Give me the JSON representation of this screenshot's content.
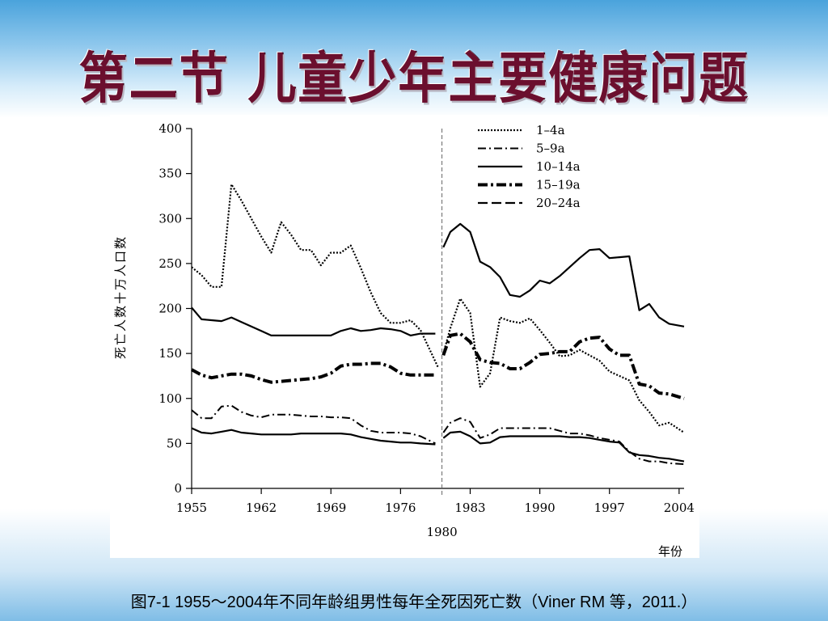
{
  "slide": {
    "title": "第二节  儿童少年主要健康问题",
    "caption": "图7-1  1955～2004年不同年龄组男性每年全死因死亡数（Viner RM 等，2011.）"
  },
  "chart_data": {
    "type": "line",
    "ylabel": "死亡人数十万人口数",
    "xlabel": "年份",
    "ylim": [
      0,
      400
    ],
    "xlim": [
      1955,
      2004.5
    ],
    "yticks": [
      "0",
      "50",
      "100",
      "150",
      "200",
      "250",
      "300",
      "350",
      "400"
    ],
    "xticks": [
      "1955",
      "1962",
      "1969",
      "1976",
      "1983",
      "1990",
      "1997",
      "2004"
    ],
    "divider": {
      "year": 1980,
      "label": "1980"
    },
    "legend_position": "top-right",
    "grid": false,
    "series": [
      {
        "name": "1–4a",
        "style": "dotted",
        "segments": [
          [
            [
              1955,
              246
            ],
            [
              1956,
              237
            ],
            [
              1957,
              224
            ],
            [
              1958,
              224
            ],
            [
              1959,
              338
            ],
            [
              1960,
              320
            ],
            [
              1961,
              300
            ],
            [
              1962,
              280
            ],
            [
              1963,
              262
            ],
            [
              1964,
              296
            ],
            [
              1965,
              282
            ],
            [
              1966,
              265
            ],
            [
              1967,
              265
            ],
            [
              1968,
              248
            ],
            [
              1969,
              262
            ],
            [
              1970,
              262
            ],
            [
              1971,
              270
            ],
            [
              1972,
              245
            ],
            [
              1973,
              218
            ],
            [
              1974,
              195
            ],
            [
              1975,
              184
            ],
            [
              1976,
              184
            ],
            [
              1977,
              187
            ],
            [
              1978,
              176
            ],
            [
              1979.8,
              134
            ]
          ],
          [
            [
              1980.3,
              150
            ],
            [
              1981,
              178
            ],
            [
              1982,
              211
            ],
            [
              1983,
              195
            ],
            [
              1984,
              113
            ],
            [
              1985,
              128
            ],
            [
              1986,
              190
            ],
            [
              1987,
              186
            ],
            [
              1988,
              184
            ],
            [
              1989,
              189
            ],
            [
              1990,
              176
            ],
            [
              1991,
              162
            ],
            [
              1992,
              147
            ],
            [
              1993,
              148
            ],
            [
              1994,
              154
            ],
            [
              1995,
              148
            ],
            [
              1996,
              142
            ],
            [
              1997,
              130
            ],
            [
              1998,
              125
            ],
            [
              1999,
              120
            ],
            [
              2000,
              98
            ],
            [
              2001,
              85
            ],
            [
              2002,
              70
            ],
            [
              2003,
              73
            ],
            [
              2004.5,
              62
            ]
          ]
        ]
      },
      {
        "name": "5–9a",
        "style": "dash-dot",
        "segments": [
          [
            [
              1955,
              87
            ],
            [
              1956,
              78
            ],
            [
              1957,
              78
            ],
            [
              1958,
              91
            ],
            [
              1959,
              92
            ],
            [
              1960,
              85
            ],
            [
              1961,
              81
            ],
            [
              1962,
              79
            ],
            [
              1963,
              82
            ],
            [
              1964,
              82
            ],
            [
              1965,
              82
            ],
            [
              1966,
              81
            ],
            [
              1967,
              80
            ],
            [
              1968,
              80
            ],
            [
              1969,
              79
            ],
            [
              1970,
              79
            ],
            [
              1971,
              78
            ],
            [
              1972,
              70
            ],
            [
              1973,
              64
            ],
            [
              1974,
              62
            ],
            [
              1975,
              62
            ],
            [
              1976,
              62
            ],
            [
              1977,
              61
            ],
            [
              1978,
              58
            ],
            [
              1979.5,
              50
            ]
          ],
          [
            [
              1980.3,
              62
            ],
            [
              1981,
              73
            ],
            [
              1982,
              78
            ],
            [
              1983,
              74
            ],
            [
              1984,
              56
            ],
            [
              1985,
              60
            ],
            [
              1986,
              67
            ],
            [
              1987,
              67
            ],
            [
              1988,
              67
            ],
            [
              1989,
              67
            ],
            [
              1990,
              67
            ],
            [
              1991,
              67
            ],
            [
              1992,
              64
            ],
            [
              1993,
              61
            ],
            [
              1994,
              61
            ],
            [
              1995,
              59
            ],
            [
              1996,
              56
            ],
            [
              1997,
              54
            ],
            [
              1998,
              52
            ],
            [
              1999,
              41
            ],
            [
              2000,
              33
            ],
            [
              2001,
              30
            ],
            [
              2002,
              30
            ],
            [
              2003,
              28
            ],
            [
              2004.5,
              27
            ]
          ]
        ]
      },
      {
        "name": "10–14a",
        "style": "solid",
        "segments": [
          [
            [
              1955,
              67
            ],
            [
              1956,
              62
            ],
            [
              1957,
              61
            ],
            [
              1958,
              63
            ],
            [
              1959,
              65
            ],
            [
              1960,
              62
            ],
            [
              1961,
              61
            ],
            [
              1962,
              60
            ],
            [
              1963,
              60
            ],
            [
              1964,
              60
            ],
            [
              1965,
              60
            ],
            [
              1966,
              61
            ],
            [
              1967,
              61
            ],
            [
              1968,
              61
            ],
            [
              1969,
              61
            ],
            [
              1970,
              61
            ],
            [
              1971,
              60
            ],
            [
              1972,
              57
            ],
            [
              1973,
              55
            ],
            [
              1974,
              53
            ],
            [
              1975,
              52
            ],
            [
              1976,
              51
            ],
            [
              1977,
              51
            ],
            [
              1978,
              50
            ],
            [
              1979.5,
              49
            ]
          ],
          [
            [
              1980.3,
              56
            ],
            [
              1981,
              62
            ],
            [
              1982,
              63
            ],
            [
              1983,
              58
            ],
            [
              1984,
              50
            ],
            [
              1985,
              51
            ],
            [
              1986,
              57
            ],
            [
              1987,
              58
            ],
            [
              1988,
              58
            ],
            [
              1989,
              58
            ],
            [
              1990,
              58
            ],
            [
              1991,
              58
            ],
            [
              1992,
              58
            ],
            [
              1993,
              57
            ],
            [
              1994,
              57
            ],
            [
              1995,
              56
            ],
            [
              1996,
              54
            ],
            [
              1997,
              52
            ],
            [
              1998,
              51
            ],
            [
              1999,
              40
            ],
            [
              2000,
              37
            ],
            [
              2001,
              36
            ],
            [
              2002,
              34
            ],
            [
              2003,
              33
            ],
            [
              2004.5,
              30
            ]
          ]
        ]
      },
      {
        "name": "15–19a",
        "style": "thick-dash-dot",
        "segments": [
          [
            [
              1955,
              132
            ],
            [
              1956,
              126
            ],
            [
              1957,
              123
            ],
            [
              1958,
              125
            ],
            [
              1959,
              127
            ],
            [
              1960,
              127
            ],
            [
              1961,
              125
            ],
            [
              1962,
              121
            ],
            [
              1963,
              118
            ],
            [
              1964,
              119
            ],
            [
              1965,
              120
            ],
            [
              1966,
              121
            ],
            [
              1967,
              122
            ],
            [
              1968,
              124
            ],
            [
              1969,
              128
            ],
            [
              1970,
              136
            ],
            [
              1971,
              138
            ],
            [
              1972,
              138
            ],
            [
              1973,
              139
            ],
            [
              1974,
              139
            ],
            [
              1975,
              135
            ],
            [
              1976,
              128
            ],
            [
              1977,
              126
            ],
            [
              1978,
              126
            ],
            [
              1979.5,
              126
            ]
          ],
          [
            [
              1980.3,
              148
            ],
            [
              1981,
              170
            ],
            [
              1982,
              172
            ],
            [
              1983,
              163
            ],
            [
              1984,
              143
            ],
            [
              1985,
              140
            ],
            [
              1986,
              139
            ],
            [
              1987,
              133
            ],
            [
              1988,
              133
            ],
            [
              1989,
              140
            ],
            [
              1990,
              149
            ],
            [
              1991,
              150
            ],
            [
              1992,
              152
            ],
            [
              1993,
              152
            ],
            [
              1994,
              163
            ],
            [
              1995,
              167
            ],
            [
              1996,
              168
            ],
            [
              1997,
              155
            ],
            [
              1998,
              148
            ],
            [
              1999,
              148
            ],
            [
              2000,
              116
            ],
            [
              2001,
              114
            ],
            [
              2002,
              106
            ],
            [
              2003,
              105
            ],
            [
              2004.5,
              100
            ]
          ]
        ]
      },
      {
        "name": "20–24a",
        "style": "dashed",
        "segments": [
          [
            [
              1955,
              201
            ],
            [
              1956,
              188
            ],
            [
              1957,
              187
            ],
            [
              1958,
              186
            ],
            [
              1959,
              190
            ],
            [
              1960,
              185
            ],
            [
              1961,
              180
            ],
            [
              1962,
              175
            ],
            [
              1963,
              170
            ],
            [
              1964,
              170
            ],
            [
              1965,
              170
            ],
            [
              1966,
              170
            ],
            [
              1967,
              170
            ],
            [
              1968,
              170
            ],
            [
              1969,
              170
            ],
            [
              1970,
              175
            ],
            [
              1971,
              178
            ],
            [
              1972,
              175
            ],
            [
              1973,
              176
            ],
            [
              1974,
              178
            ],
            [
              1975,
              177
            ],
            [
              1976,
              175
            ],
            [
              1977,
              170
            ],
            [
              1978,
              172
            ],
            [
              1979.5,
              172
            ]
          ],
          [
            [
              1980.3,
              268
            ],
            [
              1981,
              285
            ],
            [
              1982,
              294
            ],
            [
              1983,
              285
            ],
            [
              1984,
              252
            ],
            [
              1985,
              246
            ],
            [
              1986,
              235
            ],
            [
              1987,
              215
            ],
            [
              1988,
              213
            ],
            [
              1989,
              220
            ],
            [
              1990,
              231
            ],
            [
              1991,
              228
            ],
            [
              1992,
              236
            ],
            [
              1993,
              246
            ],
            [
              1994,
              256
            ],
            [
              1995,
              265
            ],
            [
              1996,
              266
            ],
            [
              1997,
              256
            ],
            [
              1998,
              257
            ],
            [
              1999,
              258
            ],
            [
              2000,
              198
            ],
            [
              2001,
              205
            ],
            [
              2002,
              190
            ],
            [
              2003,
              183
            ],
            [
              2004.5,
              180
            ]
          ]
        ]
      }
    ]
  }
}
